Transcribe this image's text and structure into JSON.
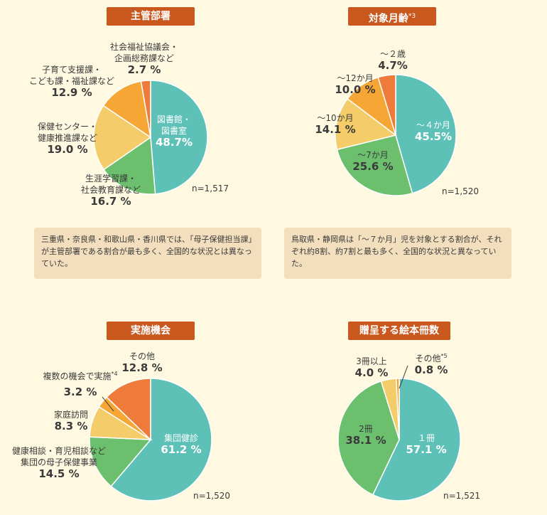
{
  "chart_data": [
    {
      "type": "pie",
      "title": "主管部署",
      "n": "n=1,517",
      "slices": [
        {
          "name": "図書館・\n図書室",
          "value": 48.7,
          "display": "48.7%",
          "color": "#5ec1b8"
        },
        {
          "name": "生涯学習課・\n社会教育課など",
          "value": 16.7,
          "display": "16.7 %",
          "color": "#6cc06d"
        },
        {
          "name": "保健センター・\n健康推進課など",
          "value": 19.0,
          "display": "19.0 %",
          "color": "#f4cd6a"
        },
        {
          "name": "子育て支援課・\nこども課・福祉課など",
          "value": 12.9,
          "display": "12.9 %",
          "color": "#f5a634"
        },
        {
          "name": "社会福祉協議会・\n企画総務課など",
          "value": 2.7,
          "display": "2.7 %",
          "color": "#ef7b3a"
        }
      ],
      "note": "三重県・奈良県・和歌山県・香川県では、「母子保健担当課」が主管部署である割合が最も多く、全国的な状況とは異なっていた。"
    },
    {
      "type": "pie",
      "title": "対象月齢",
      "title_sup": "*3",
      "n": "n=1,520",
      "slices": [
        {
          "name": "～４か月",
          "value": 45.5,
          "display": "45.5%",
          "color": "#5ec1b8"
        },
        {
          "name": "～7か月",
          "value": 25.6,
          "display": "25.6 %",
          "color": "#6cc06d"
        },
        {
          "name": "～10か月",
          "value": 14.1,
          "display": "14.1 %",
          "color": "#f4cd6a"
        },
        {
          "name": "～12か月",
          "value": 10.0,
          "display": "10.0 %",
          "color": "#f5a634"
        },
        {
          "name": "～２歳",
          "value": 4.7,
          "display": "4.7%",
          "color": "#ef7b3a"
        }
      ],
      "note": "鳥取県・静岡県は「～７か月」児を対象とする割合が、それぞれ約8割、約7割と最も多く、全国的な状況と異なっていた。"
    },
    {
      "type": "pie",
      "title": "実施機会",
      "n": "n=1,520",
      "slices": [
        {
          "name": "集団健診",
          "value": 61.2,
          "display": "61.2 %",
          "color": "#5ec1b8"
        },
        {
          "name": "健康相談・育児相談など\n集団の母子保健事業",
          "value": 14.5,
          "display": "14.5 %",
          "color": "#6cc06d"
        },
        {
          "name": "家庭訪問",
          "value": 8.3,
          "display": "8.3 %",
          "color": "#f4cd6a"
        },
        {
          "name": "複数の機会で実施",
          "sup": "*4",
          "value": 3.2,
          "display": "3.2 %",
          "color": "#f5a634"
        },
        {
          "name": "その他",
          "value": 12.8,
          "display": "12.8 %",
          "color": "#ef7b3a"
        }
      ]
    },
    {
      "type": "pie",
      "title": "贈呈する絵本冊数",
      "n": "n=1,521",
      "slices": [
        {
          "name": "１冊",
          "value": 57.1,
          "display": "57.1 %",
          "color": "#5ec1b8"
        },
        {
          "name": "2冊",
          "value": 38.1,
          "display": "38.1 %",
          "color": "#6cc06d"
        },
        {
          "name": "3冊以上",
          "value": 4.0,
          "display": "4.0 %",
          "color": "#f4cd6a"
        },
        {
          "name": "その他",
          "sup": "*5",
          "value": 0.8,
          "display": "0.8 %",
          "color": "#f5a634"
        }
      ]
    }
  ]
}
